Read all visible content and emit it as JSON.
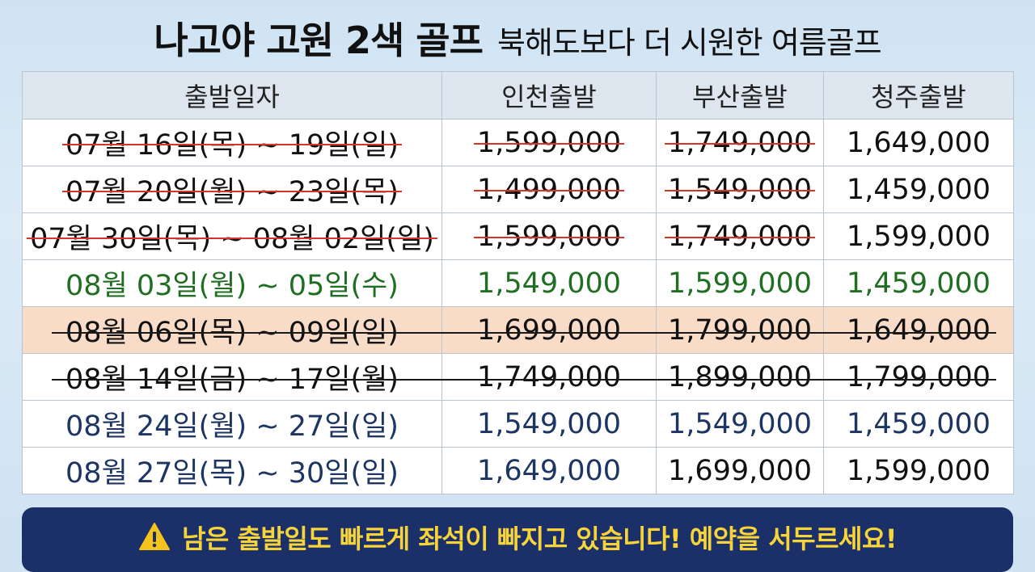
{
  "header": {
    "title_main": "나고야 고원 2색 골프",
    "title_sub": "북해도보다 더 시원한 여름골프"
  },
  "table": {
    "columns": [
      "출발일자",
      "인천출발",
      "부산출발",
      "청주출발"
    ],
    "rows": [
      {
        "date": "07월 16일(목) ~ 19일(일)",
        "incheon": "1,599,000",
        "busan": "1,749,000",
        "cheongju": "1,649,000",
        "status": "sold-out-red"
      },
      {
        "date": "07월 20일(월) ~ 23일(목)",
        "incheon": "1,499,000",
        "busan": "1,549,000",
        "cheongju": "1,459,000",
        "status": "sold-out-red"
      },
      {
        "date": "07월 30일(목) ~ 08월 02일(일)",
        "incheon": "1,599,000",
        "busan": "1,749,000",
        "cheongju": "1,599,000",
        "status": "sold-out-red"
      },
      {
        "date": "08월 03일(월) ~ 05일(수)",
        "incheon": "1,549,000",
        "busan": "1,599,000",
        "cheongju": "1,459,000",
        "status": "available-green"
      },
      {
        "date": "08월 06일(목) ~ 09일(일)",
        "incheon": "1,699,000",
        "busan": "1,799,000",
        "cheongju": "1,649,000",
        "status": "sold-out-black-highlight"
      },
      {
        "date": "08월 14일(금) ~ 17일(월)",
        "incheon": "1,749,000",
        "busan": "1,899,000",
        "cheongju": "1,799,000",
        "status": "sold-out-black"
      },
      {
        "date": "08월 24일(월) ~ 27일(일)",
        "incheon": "1,549,000",
        "busan": "1,549,000",
        "cheongju": "1,459,000",
        "status": "available-navy"
      },
      {
        "date": "08월 27일(목) ~ 30일(일)",
        "incheon": "1,649,000",
        "busan": "1,699,000",
        "cheongju": "1,599,000",
        "status": "available-navy"
      }
    ]
  },
  "banner": {
    "icon": "warning-icon",
    "message": "남은 출발일도 빠르게 좌석이 빠지고 있습니다! 예약을 서두르세요!"
  },
  "colors": {
    "strike_red": "#d4342a",
    "green": "#1f6e22",
    "navy": "#1d3563",
    "highlight": "#f9dcc8",
    "banner_bg": "#1b2f68",
    "banner_text": "#f6d43a"
  }
}
